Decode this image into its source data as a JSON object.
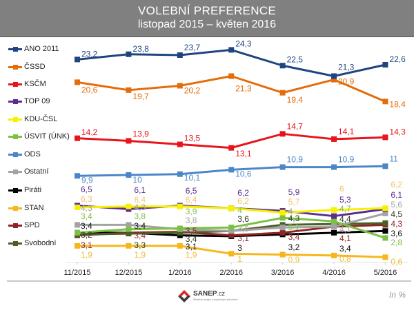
{
  "header": {
    "title": "VOLEBNÍ PREFERENCE",
    "subtitle": "listopad 2015 – květen 2016"
  },
  "footer": {
    "logo_name": "SANEP",
    "logo_suffix": ".cz",
    "logo_tagline": "Středisko analýz a empirických průzkumů",
    "unit_note": "In %"
  },
  "chart_data": {
    "type": "line",
    "title": "VOLEBNÍ PREFERENCE",
    "subtitle": "listopad 2015 – květen 2016",
    "xlabel": "",
    "ylabel": "",
    "unit": "%",
    "ylim": [
      0,
      25
    ],
    "grid": false,
    "legend_position": "left",
    "categories": [
      "11/2015",
      "12/2015",
      "1/2016",
      "2/2016",
      "3/2016",
      "4/2016",
      "5/2016"
    ],
    "series": [
      {
        "name": "ANO 2011",
        "color": "#1f4480",
        "label_color": "#1f4480",
        "values": [
          23.2,
          23.8,
          23.7,
          24.3,
          22.5,
          21.3,
          22.6
        ],
        "labels": [
          "23,2",
          "23,8",
          "23,7",
          "24,3",
          "22,5",
          "21,3",
          "22,6"
        ]
      },
      {
        "name": "ČSSD",
        "color": "#e46c0a",
        "label_color": "#e46c0a",
        "values": [
          20.6,
          19.7,
          20.2,
          21.3,
          19.4,
          20.9,
          18.4
        ],
        "labels": [
          "20,6",
          "19,7",
          "20,2",
          "21,3",
          "19,4",
          "20,9",
          "18,4"
        ]
      },
      {
        "name": "KSČM",
        "color": "#e8141b",
        "label_color": "#e8141b",
        "values": [
          14.2,
          13.9,
          13.5,
          13.1,
          14.7,
          14.1,
          14.3
        ],
        "labels": [
          "14,2",
          "13,9",
          "13,5",
          "13,1",
          "14,7",
          "14,1",
          "14,3"
        ]
      },
      {
        "name": "TOP 09",
        "color": "#5c2d91",
        "label_color": "#5c2d91",
        "values": [
          6.5,
          6.1,
          6.5,
          6.2,
          5.9,
          5.3,
          6.1
        ],
        "labels": [
          "6,5",
          "6,1",
          "6,5",
          "6,2",
          "5,9",
          "5,3",
          "6,1"
        ]
      },
      {
        "name": "KDU-ČSL",
        "color": "#f7f000",
        "label_color": "#f2c46f",
        "values": [
          6.3,
          6.4,
          6.4,
          6.2,
          5.7,
          6,
          6.2
        ],
        "labels": [
          "6,3",
          "6,4",
          "6,4",
          "6,2",
          "5,7",
          "6",
          "6,2"
        ]
      },
      {
        "name": "ÚSVIT (ÚNK)",
        "color": "#7cc045",
        "label_color": "#7cc045",
        "values": [
          3.4,
          3.8,
          3.9,
          4,
          5.1,
          4.7,
          2.8
        ],
        "labels": [
          "3,4",
          "3,8",
          "3,9",
          "4",
          "5,1",
          "4,7",
          "2,8"
        ]
      },
      {
        "name": "ODS",
        "color": "#4a86c8",
        "label_color": "#4a86c8",
        "values": [
          9.9,
          10,
          10.1,
          10.6,
          10.9,
          10.9,
          11
        ],
        "labels": [
          "9,9",
          "10",
          "10,1",
          "10,6",
          "10,9",
          "10,9",
          "11"
        ]
      },
      {
        "name": "Ostatní",
        "color": "#a3a3a3",
        "label_color": "#a3a3a3",
        "values": [
          4.3,
          4.3,
          3.8,
          3.6,
          4,
          4.1,
          5.6
        ],
        "labels": [
          "4,3",
          "4,3",
          "3,8",
          "3,6",
          "4",
          "4,1",
          "5,6"
        ]
      },
      {
        "name": "Piráti",
        "color": "#000000",
        "label_color": "#111111",
        "values": [
          3.4,
          3.4,
          3.1,
          3,
          3.2,
          3.4,
          3.6
        ],
        "labels": [
          "3,4",
          "3,4",
          "3,1",
          "3",
          "3,2",
          "3,4",
          "3,6"
        ]
      },
      {
        "name": "STAN",
        "color": "#f5b71c",
        "label_color": "#f0be3c",
        "values": [
          1.9,
          1.9,
          1.9,
          1,
          0.9,
          0.8,
          0.6
        ],
        "labels": [
          "1,9",
          "1,9",
          "1,9",
          "1",
          "0,9",
          "0,8",
          "0,6"
        ]
      },
      {
        "name": "SPD",
        "color": "#8e2424",
        "label_color": "#8e2424",
        "values": [
          3.1,
          3.4,
          3.5,
          3.1,
          3.4,
          4.1,
          4.3
        ],
        "labels": [
          "3,1",
          "3,4",
          "3,5",
          "3,1",
          "3,4",
          "4,1",
          "4,3"
        ]
      },
      {
        "name": "Svobodní",
        "color": "#4b5e27",
        "label_color": "#2e3a1a",
        "values": [
          3.2,
          3.3,
          3.4,
          3.6,
          4.3,
          4.4,
          4.5
        ],
        "labels": [
          "3,2",
          "3,3",
          "3,4",
          "3,6",
          "4,3",
          "4,4",
          "4,5"
        ]
      }
    ]
  }
}
